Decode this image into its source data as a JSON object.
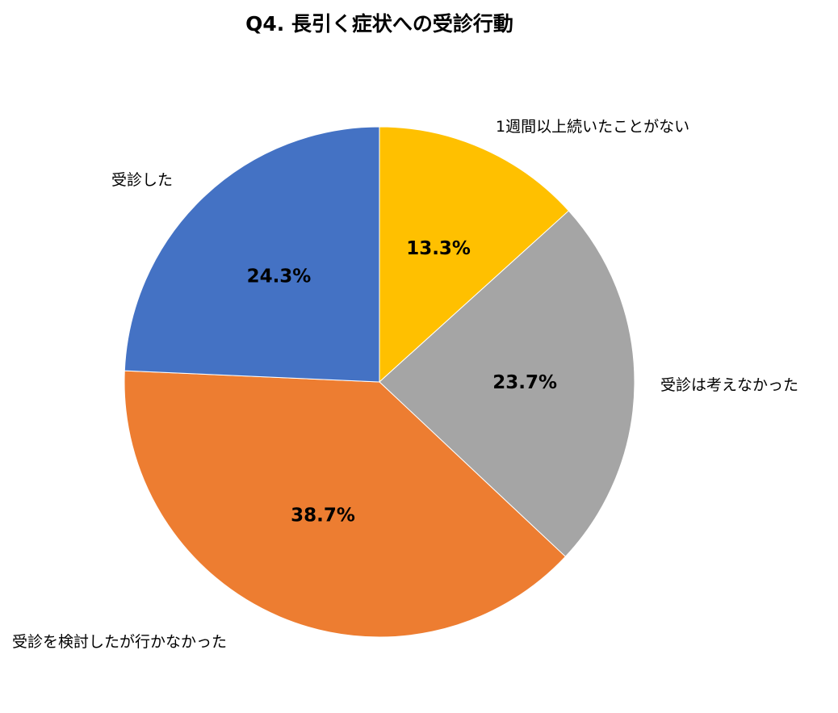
{
  "chart_data": {
    "type": "pie",
    "title": "Q4. 長引く症状への受診行動",
    "slices": [
      {
        "label": "1週間以上続いたことがない",
        "value": 13.3,
        "display": "13.3%",
        "color": "#FFC000"
      },
      {
        "label": "受診は考えなかった",
        "value": 23.7,
        "display": "23.7%",
        "color": "#A5A5A5"
      },
      {
        "label": "受診を検討したが行かなかった",
        "value": 38.7,
        "display": "38.7%",
        "color": "#ED7D31"
      },
      {
        "label": "受診した",
        "value": 24.3,
        "display": "24.3%",
        "color": "#4472C4"
      }
    ],
    "start": "12 o'clock",
    "direction": "clockwise",
    "legend": "none (labels outside slices)",
    "data_labels": "inside"
  }
}
